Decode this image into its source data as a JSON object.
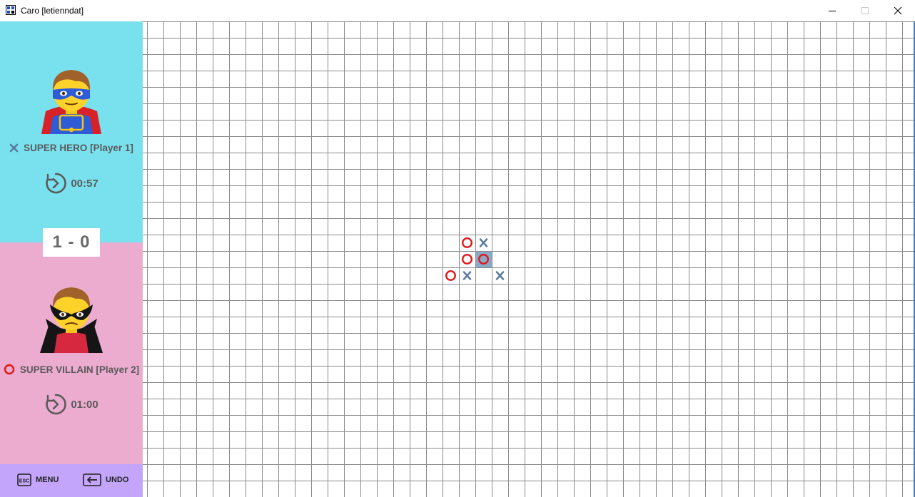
{
  "window": {
    "title": "Caro [letienndat]",
    "controls": [
      "minimize",
      "maximize",
      "close"
    ]
  },
  "players": [
    {
      "name": "SUPER HERO [Player 1]",
      "symbol": "X",
      "avatar": "superhero-icon",
      "timer": "00:57",
      "panel_color": "#79e1ee"
    },
    {
      "name": "SUPER VILLAIN [Player 2]",
      "symbol": "O",
      "avatar": "supervillain-icon",
      "timer": "01:00",
      "panel_color": "#ecacd0"
    }
  ],
  "score": "1 - 0",
  "bottom_bar": {
    "menu_key": "ESC",
    "menu_label": "MENU",
    "undo_label": "UNDO",
    "color": "#c3a6fb"
  },
  "board": {
    "grid_color": "#8a8a8a",
    "x_color": "#5a7a9e",
    "o_color": "#e01818",
    "highlight_color": "#88aac8",
    "moves": [
      {
        "col": 19,
        "row": 13,
        "symbol": "O"
      },
      {
        "col": 20,
        "row": 13,
        "symbol": "X"
      },
      {
        "col": 19,
        "row": 14,
        "symbol": "O"
      },
      {
        "col": 20,
        "row": 14,
        "symbol": "O",
        "last": true
      },
      {
        "col": 18,
        "row": 15,
        "symbol": "O"
      },
      {
        "col": 19,
        "row": 15,
        "symbol": "X"
      },
      {
        "col": 21,
        "row": 15,
        "symbol": "X"
      }
    ]
  }
}
